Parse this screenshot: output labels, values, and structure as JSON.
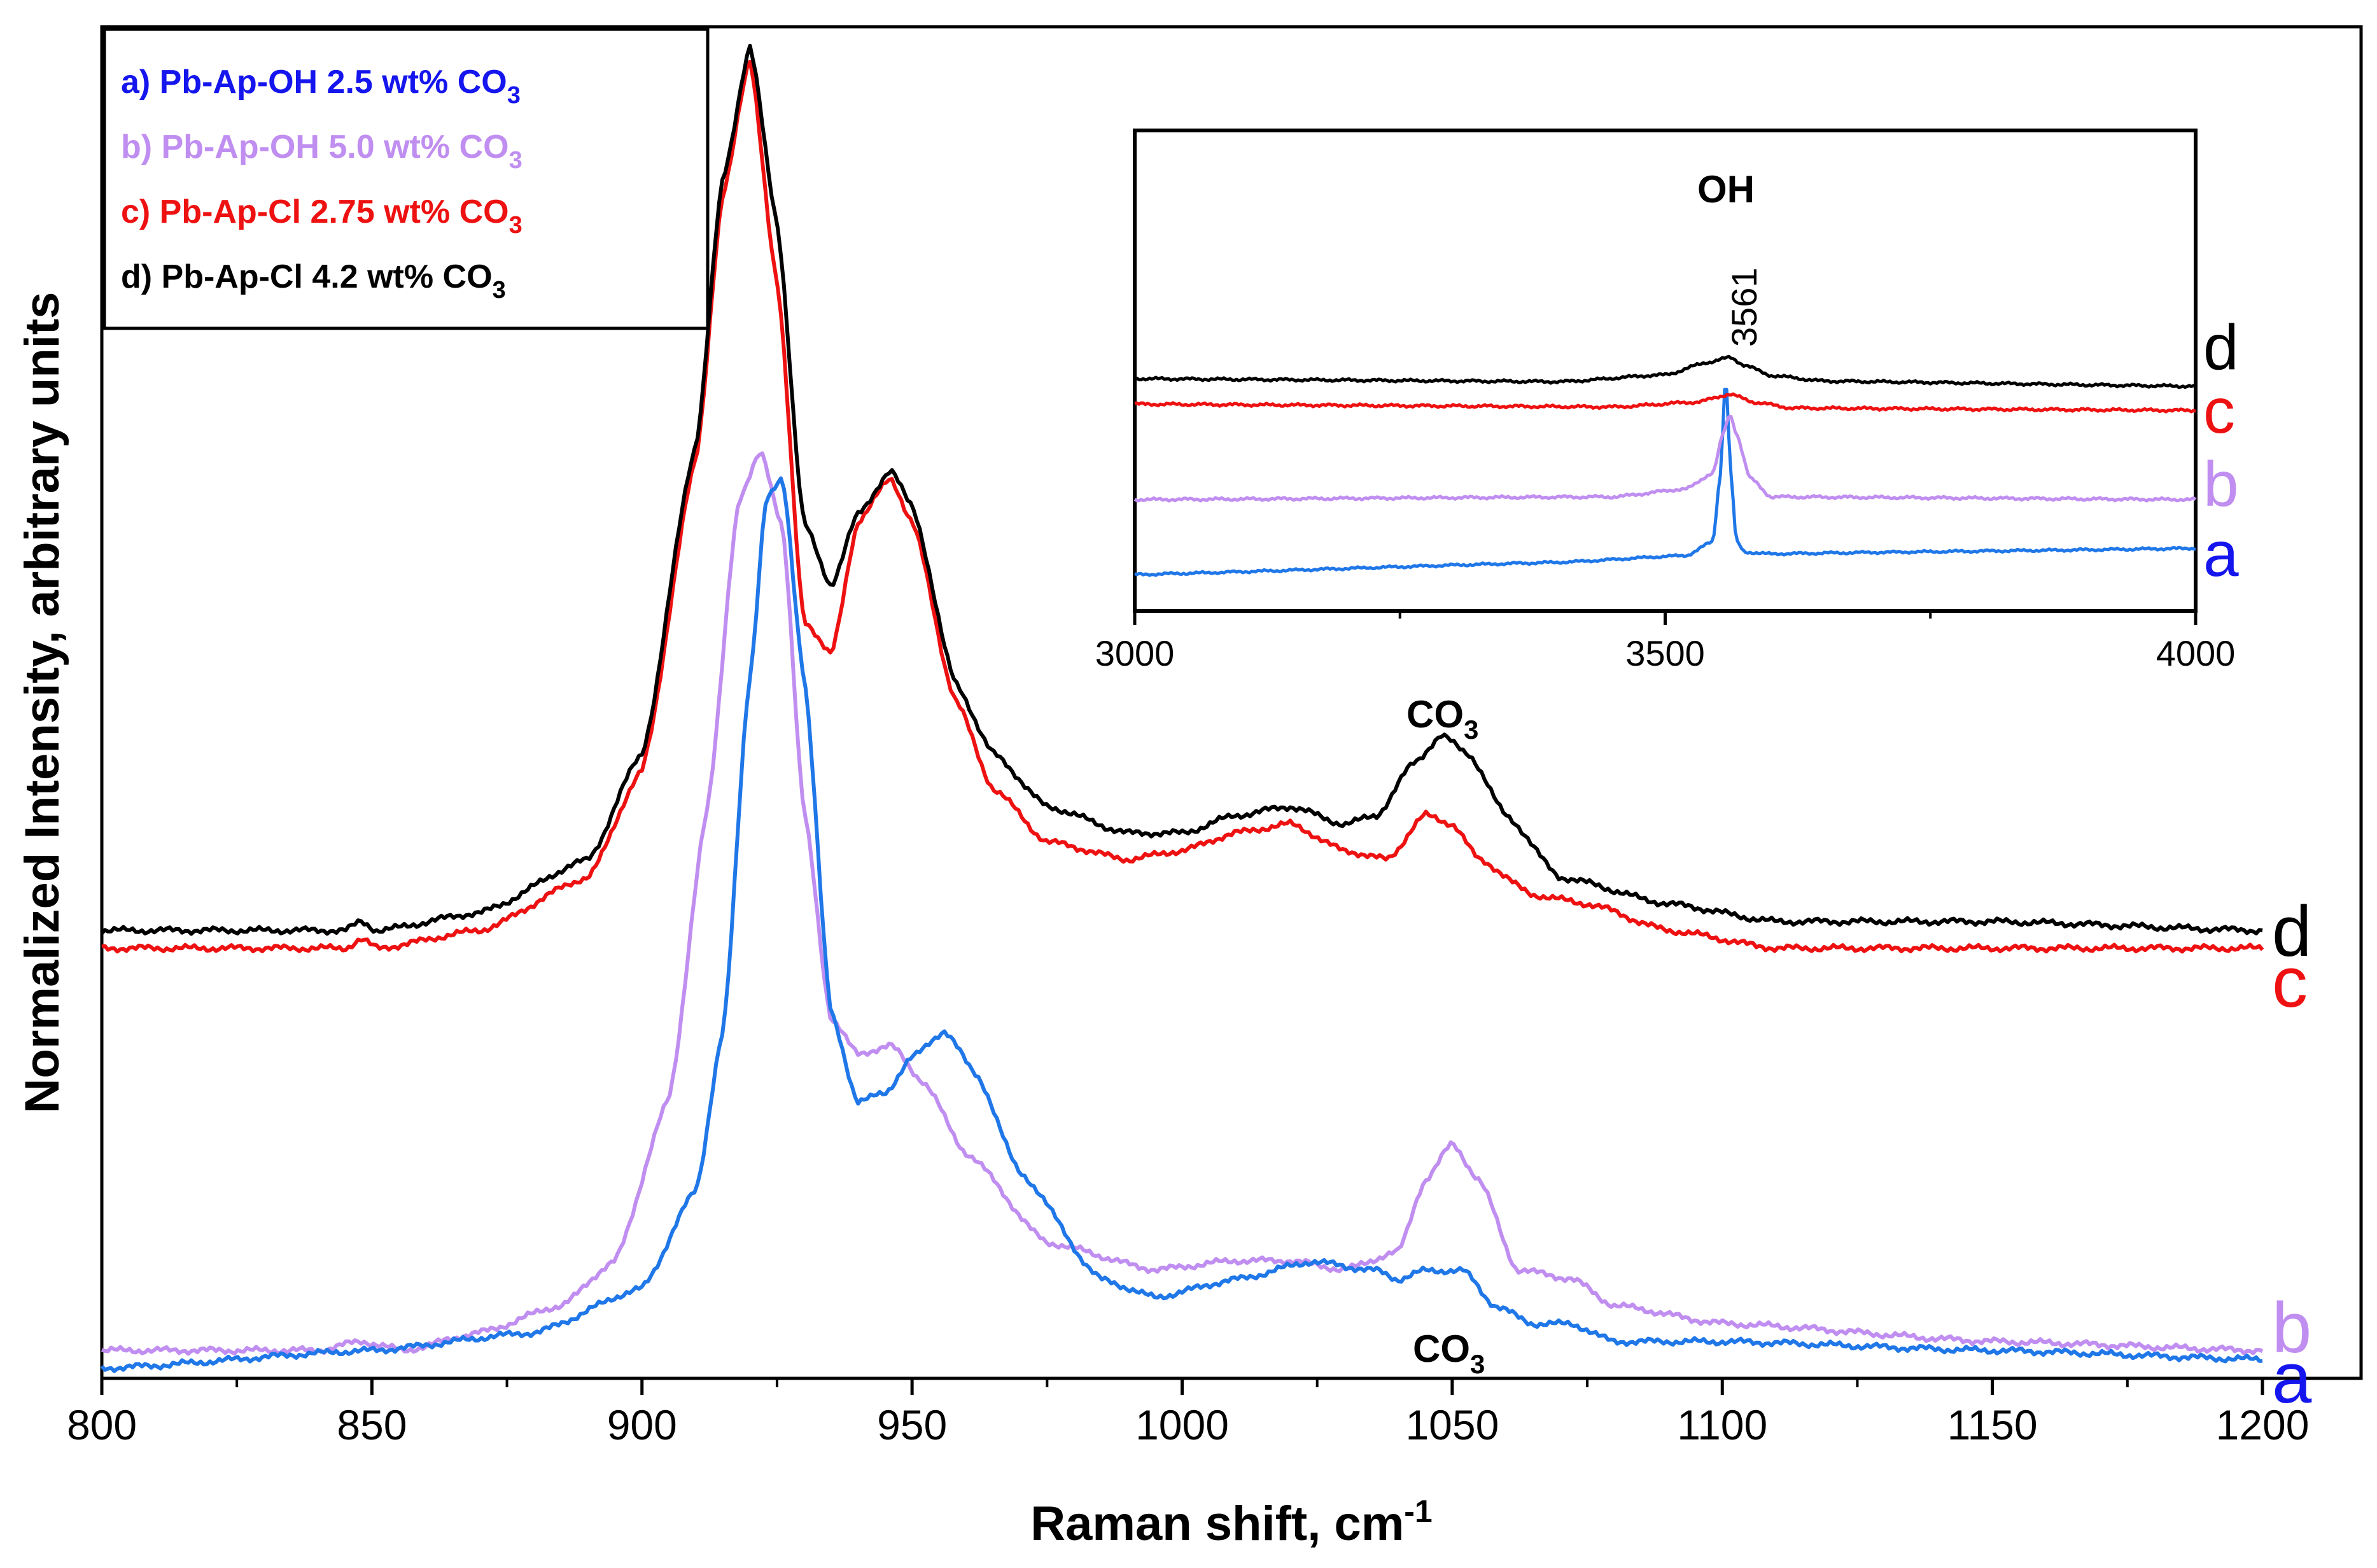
{
  "chart_data": {
    "type": "line",
    "xlabel": "Raman shift, cm",
    "xlabel_sup": "-1",
    "ylabel": "Normalized Intensity, arbitrary units",
    "xlim": [
      800,
      1200
    ],
    "x_ticks": [
      "800",
      "850",
      "900",
      "950",
      "1000",
      "1050",
      "1100",
      "1150",
      "1200"
    ],
    "series": [
      {
        "key": "a",
        "name": "a) Pb-Ap-OH  2.5 wt% CO",
        "name_sub": "3",
        "color": "#1f77e8",
        "legend_color": "#1515ee",
        "letter_color": "#1515ee",
        "offset": 0.0,
        "x": [
          800,
          850,
          880,
          900,
          910,
          915,
          920,
          923,
          926,
          930,
          935,
          940,
          945,
          950,
          956,
          962,
          970,
          985,
          995,
          1010,
          1024,
          1036,
          1040,
          1045,
          1052,
          1058,
          1065,
          1072,
          1080,
          1100,
          1150,
          1200
        ],
        "y": [
          0.0,
          0.02,
          0.04,
          0.09,
          0.2,
          0.38,
          0.78,
          0.98,
          1.0,
          0.78,
          0.4,
          0.3,
          0.31,
          0.35,
          0.38,
          0.33,
          0.22,
          0.1,
          0.08,
          0.1,
          0.12,
          0.11,
          0.1,
          0.11,
          0.11,
          0.07,
          0.05,
          0.05,
          0.03,
          0.03,
          0.02,
          0.01
        ]
      },
      {
        "key": "b",
        "name": "b) Pb-Ap-OH  5.0 wt% CO",
        "name_sub": "3",
        "color": "#c08ef0",
        "legend_color": "#c08ef0",
        "letter_color": "#c08ef0",
        "offset": 0.01,
        "x": [
          800,
          840,
          848,
          856,
          870,
          885,
          895,
          905,
          912,
          918,
          922,
          926,
          930,
          935,
          940,
          946,
          952,
          960,
          975,
          995,
          1010,
          1020,
          1030,
          1040,
          1045,
          1050,
          1055,
          1062,
          1072,
          1080,
          1100,
          1150,
          1200
        ],
        "y": [
          0.0,
          0.0,
          0.01,
          0.0,
          0.02,
          0.05,
          0.1,
          0.28,
          0.6,
          0.95,
          1.0,
          0.92,
          0.6,
          0.37,
          0.33,
          0.34,
          0.3,
          0.22,
          0.12,
          0.09,
          0.1,
          0.1,
          0.09,
          0.11,
          0.19,
          0.23,
          0.19,
          0.09,
          0.08,
          0.05,
          0.03,
          0.01,
          0.0
        ]
      },
      {
        "key": "c",
        "name": "c) Pb-Ap-Cl  2.75 wt% CO",
        "name_sub": "3",
        "color": "#ee1111",
        "legend_color": "#ee1111",
        "letter_color": "#ee1111",
        "offset": 0.0,
        "x": [
          800,
          845,
          848,
          851,
          870,
          890,
          900,
          910,
          915,
          920,
          925,
          930,
          935,
          940,
          946,
          950,
          958,
          965,
          975,
          990,
          1000,
          1010,
          1020,
          1030,
          1038,
          1045,
          1050,
          1055,
          1065,
          1075,
          1090,
          1110,
          1150,
          1200
        ],
        "y": [
          0.0,
          0.0,
          0.01,
          0.0,
          0.02,
          0.08,
          0.2,
          0.55,
          0.85,
          1.0,
          0.75,
          0.37,
          0.33,
          0.48,
          0.53,
          0.48,
          0.28,
          0.18,
          0.12,
          0.1,
          0.11,
          0.13,
          0.14,
          0.11,
          0.1,
          0.15,
          0.14,
          0.1,
          0.06,
          0.05,
          0.02,
          0.0,
          0.0,
          0.0
        ]
      },
      {
        "key": "d",
        "name": "d) Pb-Ap-Cl  4.2 wt% CO",
        "name_sub": "3",
        "color": "#000000",
        "legend_color": "#000000",
        "letter_color": "#000000",
        "offset": 0.0,
        "x": [
          800,
          845,
          848,
          851,
          870,
          890,
          900,
          910,
          915,
          920,
          925,
          930,
          935,
          940,
          946,
          950,
          958,
          965,
          975,
          990,
          1000,
          1010,
          1020,
          1030,
          1036,
          1043,
          1048,
          1053,
          1060,
          1070,
          1090,
          1110,
          1145,
          1150,
          1200
        ],
        "y": [
          0.0,
          0.0,
          0.01,
          0.0,
          0.02,
          0.08,
          0.2,
          0.55,
          0.85,
          1.0,
          0.8,
          0.46,
          0.39,
          0.47,
          0.52,
          0.48,
          0.28,
          0.2,
          0.14,
          0.11,
          0.11,
          0.13,
          0.14,
          0.12,
          0.13,
          0.19,
          0.22,
          0.2,
          0.13,
          0.06,
          0.03,
          0.01,
          0.01,
          0.01,
          0.0
        ]
      }
    ],
    "annotations": [
      {
        "text": "CO",
        "sub": "3",
        "x": 1050,
        "series": "d"
      },
      {
        "text": "CO",
        "sub": "3",
        "x": 1050,
        "series": "a"
      }
    ],
    "inset": {
      "title": "OH",
      "peak_label": "3561",
      "xlim": [
        3000,
        4000
      ],
      "x_ticks": [
        "3000",
        "3500",
        "4000"
      ],
      "series": [
        {
          "key": "a",
          "color": "#1f77e8",
          "letter_color": "#1515ee",
          "x": [
            3000,
            3400,
            3520,
            3545,
            3552,
            3557,
            3562,
            3567,
            3575,
            3600,
            4000
          ],
          "y": [
            0.0,
            0.02,
            0.04,
            0.1,
            0.4,
            0.85,
            0.4,
            0.1,
            0.05,
            0.04,
            0.03
          ]
        },
        {
          "key": "b",
          "color": "#c08ef0",
          "letter_color": "#c08ef0",
          "x": [
            3000,
            3450,
            3520,
            3545,
            3555,
            3561,
            3567,
            3580,
            3600,
            4000
          ],
          "y": [
            0.0,
            0.01,
            0.04,
            0.1,
            0.25,
            0.32,
            0.25,
            0.08,
            0.01,
            0.0
          ]
        },
        {
          "key": "c",
          "color": "#ee1111",
          "letter_color": "#ee1111",
          "x": [
            3000,
            3450,
            3530,
            3561,
            3585,
            3620,
            4000
          ],
          "y": [
            0.0,
            0.0,
            0.02,
            0.05,
            0.02,
            0.0,
            0.0
          ]
        },
        {
          "key": "d",
          "color": "#000000",
          "letter_color": "#000000",
          "x": [
            3000,
            3400,
            3500,
            3540,
            3561,
            3575,
            3600,
            3650,
            4000
          ],
          "y": [
            0.0,
            0.0,
            0.03,
            0.08,
            0.1,
            0.07,
            0.03,
            0.01,
            0.0
          ]
        }
      ]
    }
  }
}
